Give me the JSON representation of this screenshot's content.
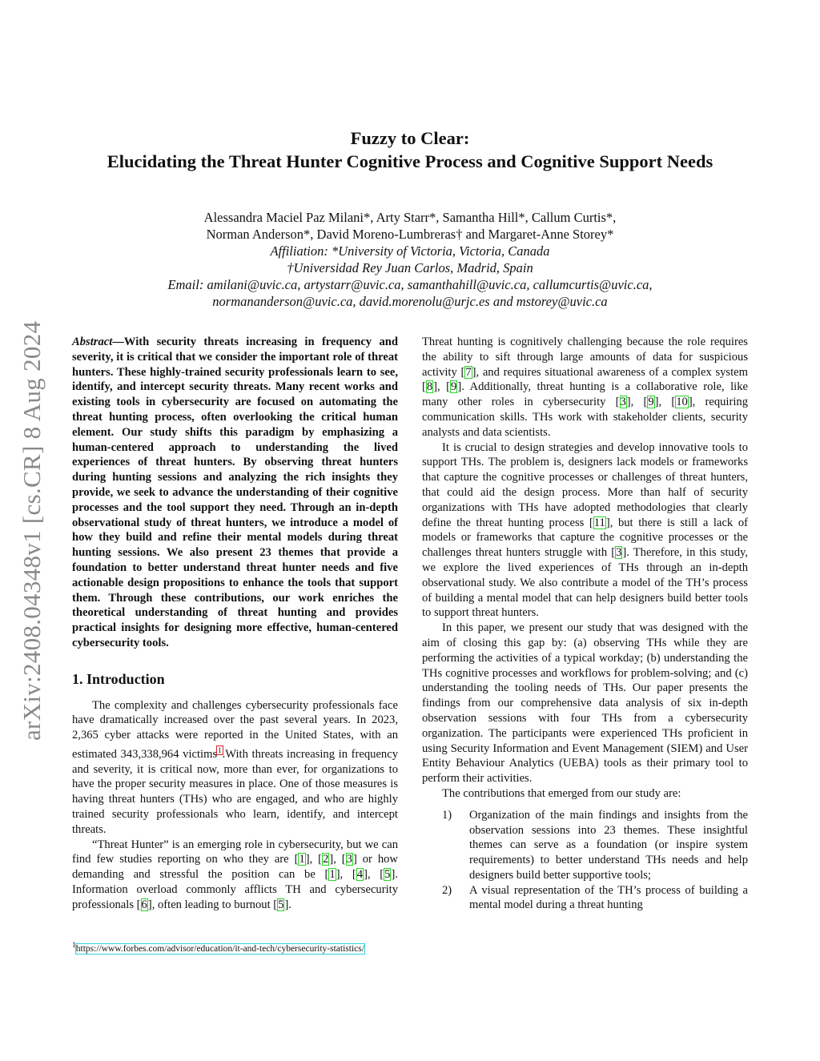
{
  "sidebar_stamp": "arXiv:2408.04348v1  [cs.CR]  8 Aug 2024",
  "title": {
    "line1": "Fuzzy to Clear:",
    "line2": "Elucidating the Threat Hunter Cognitive Process and Cognitive Support Needs"
  },
  "authors": {
    "line1": "Alessandra Maciel Paz Milani*, Arty Starr*, Samantha Hill*, Callum Curtis*,",
    "line2": "Norman Anderson*, David Moreno-Lumbreras† and Margaret-Anne Storey*",
    "affil1": "Affiliation: *University of Victoria, Victoria, Canada",
    "affil2": "†Universidad Rey Juan Carlos, Madrid, Spain",
    "email1": "Email: amilani@uvic.ca, artystarr@uvic.ca, samanthahill@uvic.ca, callumcurtis@uvic.ca,",
    "email2": "normananderson@uvic.ca, david.morenolu@urjc.es and mstorey@uvic.ca"
  },
  "abstract": {
    "label": "Abstract",
    "text": "—With security threats increasing in frequency and severity, it is critical that we consider the important role of threat hunters. These highly-trained security professionals learn to see, identify, and intercept security threats. Many recent works and existing tools in cybersecurity are focused on automating the threat hunting process, often overlooking the critical human element. Our study shifts this paradigm by emphasizing a human-centered approach to understanding the lived experiences of threat hunters. By observing threat hunters during hunting sessions and analyzing the rich insights they provide, we seek to advance the understanding of their cognitive processes and the tool support they need. Through an in-depth observational study of threat hunters, we introduce a model of how they build and refine their mental models during threat hunting sessions. We also present 23 themes that provide a foundation to better understand threat hunter needs and five actionable design propositions to enhance the tools that support them. Through these contributions, our work enriches the theoretical understanding of threat hunting and provides practical insights for designing more effective, human-centered cybersecurity tools."
  },
  "section_heading": "1.  Introduction",
  "left_paragraphs": [
    [
      {
        "t": "The complexity and challenges cybersecurity professionals face have dramatically increased over the past several years. In 2023, 2,365 cyber attacks were reported in the United States, with an estimated 343,338,964 victims"
      },
      {
        "fn": "1"
      },
      {
        "t": ".With threats increasing in frequency and severity, it is critical now, more than ever, for organizations to have the proper security measures in place. One of those measures is having threat hunters (THs) who are engaged, and who are highly trained security professionals who learn, identify, and intercept threats."
      }
    ],
    [
      {
        "t": "“Threat Hunter” is an emerging role in cybersecurity, but we can find few studies reporting on who they are ["
      },
      {
        "c": "1"
      },
      {
        "t": "], ["
      },
      {
        "c": "2"
      },
      {
        "t": "], ["
      },
      {
        "c": "3"
      },
      {
        "t": "] or how demanding and stressful the position can be ["
      },
      {
        "c": "1"
      },
      {
        "t": "], ["
      },
      {
        "c": "4"
      },
      {
        "t": "], ["
      },
      {
        "c": "5"
      },
      {
        "t": "]. Information overload commonly afflicts TH and cybersecurity professionals ["
      },
      {
        "c": "6"
      },
      {
        "t": "], often leading to burnout ["
      },
      {
        "c": "5"
      },
      {
        "t": "]."
      }
    ]
  ],
  "footnote": {
    "mark": "1",
    "url": "https://www.forbes.com/advisor/education/it-and-tech/cybersecurity-statistics/"
  },
  "right_paragraphs": [
    [
      {
        "t": "Threat hunting is cognitively challenging because the role requires the ability to sift through large amounts of data for suspicious activity ["
      },
      {
        "c": "7"
      },
      {
        "t": "], and requires situational awareness of a complex system ["
      },
      {
        "c": "8"
      },
      {
        "t": "], ["
      },
      {
        "c": "9"
      },
      {
        "t": "]. Additionally, threat hunting is a collaborative role, like many other roles in cybersecurity ["
      },
      {
        "c": "3"
      },
      {
        "t": "], ["
      },
      {
        "c": "9"
      },
      {
        "t": "], ["
      },
      {
        "c": "10"
      },
      {
        "t": "], requiring communication skills. THs work with stakeholder clients, security analysts and data scientists."
      }
    ],
    [
      {
        "t": "It is crucial to design strategies and develop innovative tools to support THs. The problem is, designers lack models or frameworks that capture the cognitive processes or challenges of threat hunters, that could aid the design process. More than half of security organizations with THs have adopted methodologies that clearly define the threat hunting process ["
      },
      {
        "c": "11"
      },
      {
        "t": "], but there is still a lack of models or frameworks that capture the cognitive processes or the challenges threat hunters struggle with ["
      },
      {
        "c": "3"
      },
      {
        "t": "]. Therefore, in this study, we explore the lived experiences of THs through an in-depth observational study. We also contribute a model of the TH’s process of building a mental model that can help designers build better tools to support threat hunters."
      }
    ],
    [
      {
        "t": "In this paper, we present our study that was designed with the aim of closing this gap by: (a) observing THs while they are performing the activities of a typical workday; (b) understanding the THs cognitive processes and workflows for problem-solving; and (c) understanding the tooling needs of THs. Our paper presents the findings from our comprehensive data analysis of six in-depth observation sessions with four THs from a cybersecurity organization. The participants were experienced THs proficient in using Security Information and Event Management (SIEM) and User Entity Behaviour Analytics (UEBA) tools as their primary tool to perform their activities."
      }
    ],
    [
      {
        "t": "The contributions that emerged from our study are:"
      }
    ]
  ],
  "contributions": [
    {
      "num": "1)",
      "text": "Organization of the main findings and insights from the observation sessions into 23 themes. These insightful themes can serve as a foundation (or inspire system requirements) to better understand THs needs and help designers build better supportive tools;"
    },
    {
      "num": "2)",
      "text": "A visual representation of the TH’s process of building a mental model during a threat hunting"
    }
  ]
}
